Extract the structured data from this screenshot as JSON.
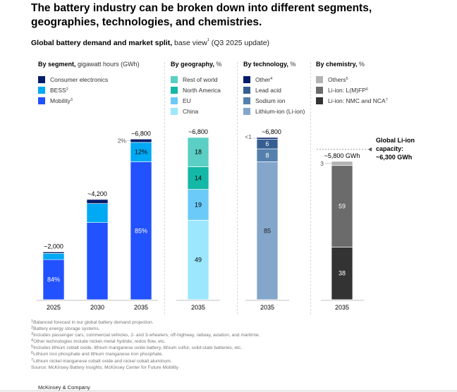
{
  "title": "The battery industry can be broken down into different segments, geographies, technologies, and chemistries.",
  "subtitle": {
    "bold": "Global battery demand and market split,",
    "rest": " base view",
    "sup": "1",
    "tail": " (Q3 2025 update)"
  },
  "panels": [
    {
      "id": "segment",
      "heading_bold": "By segment,",
      "heading_unit": " gigawatt hours (GWh)",
      "legend": [
        {
          "label": "Consumer electronics",
          "sup": "",
          "color": "#051c6b"
        },
        {
          "label": "BESS",
          "sup": "2",
          "color": "#00a9f4"
        },
        {
          "label": "Mobility",
          "sup": "3",
          "color": "#2251ff"
        }
      ]
    },
    {
      "id": "geography",
      "heading_bold": "By geography,",
      "heading_unit": " %",
      "legend": [
        {
          "label": "Rest of world",
          "sup": "",
          "color": "#5ccfc4"
        },
        {
          "label": "North America",
          "sup": "",
          "color": "#14b8a6"
        },
        {
          "label": "EU",
          "sup": "",
          "color": "#6bcaf7"
        },
        {
          "label": "China",
          "sup": "",
          "color": "#9ce7fd"
        }
      ]
    },
    {
      "id": "technology",
      "heading_bold": "By technology,",
      "heading_unit": " %",
      "legend": [
        {
          "label": "Other",
          "sup": "4",
          "color": "#051c6b"
        },
        {
          "label": "Lead acid",
          "sup": "",
          "color": "#365f91"
        },
        {
          "label": "Sodium ion",
          "sup": "",
          "color": "#5580ad"
        },
        {
          "label": "Lithium-ion (Li-ion)",
          "sup": "",
          "color": "#84a6cb"
        }
      ]
    },
    {
      "id": "chemistry",
      "heading_bold": "By chemistry,",
      "heading_unit": " %",
      "legend": [
        {
          "label": "Others",
          "sup": "5",
          "color": "#b3b3b3"
        },
        {
          "label": "Li-ion: L(M)FP",
          "sup": "6",
          "color": "#6b6b6b"
        },
        {
          "label": "Li-ion: NMC and NCA",
          "sup": "7",
          "color": "#333333"
        }
      ]
    }
  ],
  "chart_data": [
    {
      "type": "bar",
      "title": "By segment, gigawatt hours (GWh)",
      "stacked": true,
      "categories": [
        "2025",
        "2030",
        "2035"
      ],
      "totals": [
        2000,
        4200,
        6800
      ],
      "total_labels": [
        "~2,000",
        "~4,200",
        "~6,800"
      ],
      "series": [
        {
          "name": "Mobility",
          "share_pct": [
            84,
            77,
            85
          ],
          "labels": [
            "84%",
            "",
            "85%"
          ],
          "color": "#2251ff"
        },
        {
          "name": "BESS",
          "share_pct": [
            13,
            19,
            12
          ],
          "labels": [
            "",
            "",
            "12%"
          ],
          "color": "#00a9f4"
        },
        {
          "name": "Consumer electronics",
          "share_pct": [
            3,
            4,
            2
          ],
          "labels": [
            "",
            "",
            "2%"
          ],
          "color": "#051c6b"
        }
      ],
      "ylim": [
        0,
        6800
      ]
    },
    {
      "type": "bar",
      "title": "By geography, %",
      "stacked": true,
      "categories": [
        "2035"
      ],
      "total_label": "~6,800",
      "total": 6800,
      "series": [
        {
          "name": "China",
          "values": [
            49
          ],
          "color": "#9ce7fd"
        },
        {
          "name": "EU",
          "values": [
            19
          ],
          "color": "#6bcaf7"
        },
        {
          "name": "North America",
          "values": [
            14
          ],
          "color": "#14b8a6"
        },
        {
          "name": "Rest of world",
          "values": [
            18
          ],
          "color": "#5ccfc4"
        }
      ]
    },
    {
      "type": "bar",
      "title": "By technology, %",
      "stacked": true,
      "categories": [
        "2035"
      ],
      "total_label": "~6,800",
      "total": 6800,
      "series": [
        {
          "name": "Lithium-ion (Li-ion)",
          "values": [
            85
          ],
          "label": "85",
          "color": "#84a6cb"
        },
        {
          "name": "Sodium ion",
          "values": [
            8
          ],
          "label": "8",
          "color": "#5580ad"
        },
        {
          "name": "Lead acid",
          "values": [
            6
          ],
          "label": "6",
          "color": "#365f91"
        },
        {
          "name": "Other",
          "values": [
            1
          ],
          "label": "<1",
          "color": "#051c6b"
        }
      ]
    },
    {
      "type": "bar",
      "title": "By chemistry, %",
      "stacked": true,
      "categories": [
        "2035"
      ],
      "total_label": "~5,800 GWh",
      "total": 5800,
      "series": [
        {
          "name": "Li-ion: NMC and NCA",
          "values": [
            38
          ],
          "label": "38",
          "color": "#333333"
        },
        {
          "name": "Li-ion: L(M)FP",
          "values": [
            59
          ],
          "label": "59",
          "color": "#6b6b6b"
        },
        {
          "name": "Others",
          "values": [
            3
          ],
          "label": "3",
          "color": "#b3b3b3"
        }
      ],
      "annotation": {
        "lines": [
          "Global Li-ion",
          "capacity:",
          "~6,300 GWh"
        ],
        "value": 6300
      }
    }
  ],
  "footnotes": [
    {
      "num": "1",
      "text": "Balanced forecast in our global battery demand projection."
    },
    {
      "num": "2",
      "text": "Battery energy storage systems."
    },
    {
      "num": "3",
      "text": "Includes passenger cars, commercial vehicles, 2- and 3-wheelers, off-highway, railway, aviation, and maritime."
    },
    {
      "num": "4",
      "text": "Other technologies include nickel–metal hydride, redox flow, etc."
    },
    {
      "num": "5",
      "text": "Includes lithium cobalt oxide, lithium manganese oxide battery, lithium sulfur, solid-state batteries, etc."
    },
    {
      "num": "6",
      "text": "Lithium iron phosphate and lithium manganese iron phosphate."
    },
    {
      "num": "7",
      "text": "Lithium nickel manganese cobalt oxide and nickel cobalt aluminum."
    },
    {
      "num": "",
      "text": " Source: McKinsey Battery Insights;  McKinsey Center for Future Mobility"
    }
  ],
  "footer": "McKinsey & Company"
}
